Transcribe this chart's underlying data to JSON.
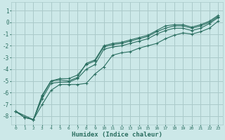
{
  "xlabel": "Humidex (Indice chaleur)",
  "bg_color": "#cce8e8",
  "grid_color": "#aacaca",
  "line_color": "#2a6e60",
  "xlim": [
    -0.5,
    23.5
  ],
  "ylim": [
    -8.7,
    1.7
  ],
  "xticks": [
    0,
    1,
    2,
    3,
    4,
    5,
    6,
    7,
    8,
    9,
    10,
    11,
    12,
    13,
    14,
    15,
    16,
    17,
    18,
    19,
    20,
    21,
    22,
    23
  ],
  "yticks": [
    1,
    0,
    -1,
    -2,
    -3,
    -4,
    -5,
    -6,
    -7,
    -8
  ],
  "line1_x": [
    0,
    1,
    2,
    3,
    4,
    5,
    6,
    7,
    8,
    9,
    10,
    11,
    12,
    13,
    14,
    15,
    16,
    17,
    18,
    19,
    20,
    21,
    22,
    23
  ],
  "line1_y": [
    -7.6,
    -8.1,
    -8.3,
    -6.3,
    -5.0,
    -4.8,
    -4.8,
    -4.5,
    -3.6,
    -3.3,
    -2.1,
    -1.9,
    -1.8,
    -1.6,
    -1.4,
    -1.2,
    -0.8,
    -0.5,
    -0.3,
    -0.3,
    -0.5,
    -0.3,
    0.0,
    0.5
  ],
  "line2_x": [
    0,
    1,
    2,
    3,
    4,
    5,
    6,
    7,
    8,
    9,
    10,
    11,
    12,
    13,
    14,
    15,
    16,
    17,
    18,
    19,
    20,
    21,
    22,
    23
  ],
  "line2_y": [
    -7.6,
    -8.1,
    -8.3,
    -6.5,
    -5.2,
    -5.1,
    -5.1,
    -4.8,
    -4.0,
    -3.6,
    -2.3,
    -2.1,
    -2.0,
    -1.8,
    -1.6,
    -1.4,
    -1.0,
    -0.7,
    -0.5,
    -0.5,
    -0.7,
    -0.5,
    -0.1,
    0.4
  ],
  "line3_x": [
    0,
    1,
    2,
    3,
    4,
    5,
    6,
    7,
    8,
    9,
    10,
    11,
    12,
    13,
    14,
    15,
    16,
    17,
    18,
    19,
    20,
    21,
    22,
    23
  ],
  "line3_y": [
    -7.6,
    -8.1,
    -8.3,
    -6.2,
    -5.0,
    -4.9,
    -5.0,
    -4.7,
    -3.5,
    -3.2,
    -2.0,
    -1.8,
    -1.7,
    -1.5,
    -1.3,
    -1.1,
    -0.7,
    -0.3,
    -0.2,
    -0.2,
    -0.4,
    -0.2,
    0.1,
    0.6
  ],
  "line4_x": [
    0,
    2,
    3,
    4,
    5,
    6,
    7,
    8,
    9,
    10,
    11,
    12,
    13,
    14,
    15,
    16,
    17,
    18,
    19,
    20,
    21,
    22,
    23
  ],
  "line4_y": [
    -7.6,
    -8.3,
    -7.0,
    -5.8,
    -5.3,
    -5.3,
    -5.3,
    -5.2,
    -4.4,
    -3.8,
    -2.8,
    -2.6,
    -2.5,
    -2.2,
    -2.0,
    -1.8,
    -1.4,
    -1.1,
    -0.9,
    -1.0,
    -0.8,
    -0.5,
    0.1
  ]
}
